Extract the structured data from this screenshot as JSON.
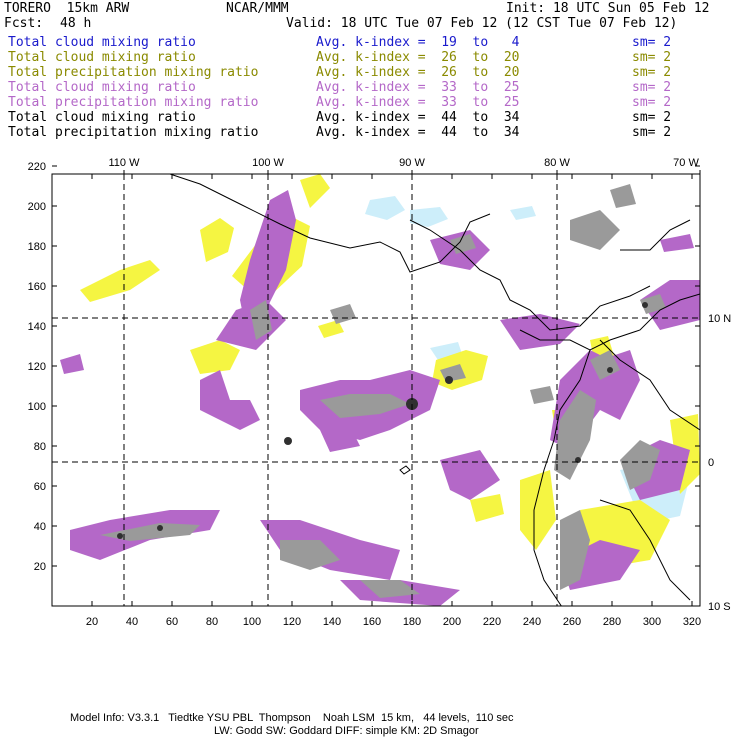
{
  "header": {
    "model": "TORERO  15km ARW",
    "org": "NCAR/MMM",
    "init": "Init: 18 UTC Sun 05 Feb 12",
    "fcst_label": "Fcst:",
    "fcst_value": "48 h",
    "valid": "Valid: 18 UTC Tue 07 Feb 12 (12 CST Tue 07 Feb 12)"
  },
  "legend": [
    {
      "label": "Total cloud mixing ratio",
      "kindex": "Avg. k-index =  19  to   4",
      "sm": "sm= 2",
      "color": "#1a1acc"
    },
    {
      "label": "Total cloud mixing ratio",
      "kindex": "Avg. k-index =  26  to  20",
      "sm": "sm= 2",
      "color": "#8a8a00"
    },
    {
      "label": "Total precipitation mixing ratio",
      "kindex": "Avg. k-index =  26  to  20",
      "sm": "sm= 2",
      "color": "#8a8a00"
    },
    {
      "label": "Total cloud mixing ratio",
      "kindex": "Avg. k-index =  33  to  25",
      "sm": "sm= 2",
      "color": "#b468c8"
    },
    {
      "label": "Total precipitation mixing ratio",
      "kindex": "Avg. k-index =  33  to  25",
      "sm": "sm= 2",
      "color": "#b468c8"
    },
    {
      "label": "Total cloud mixing ratio",
      "kindex": "Avg. k-index =  44  to  34",
      "sm": "sm= 2",
      "color": "#000000"
    },
    {
      "label": "Total precipitation mixing ratio",
      "kindex": "Avg. k-index =  44  to  34",
      "sm": "sm= 2",
      "color": "#000000"
    }
  ],
  "axes": {
    "lon_labels": [
      "110 W",
      "100 W",
      "90 W",
      "80 W",
      "70 W"
    ],
    "lat_labels": [
      "10 N",
      "0",
      "10 S"
    ],
    "x_ticks": [
      "20",
      "40",
      "60",
      "80",
      "100",
      "120",
      "140",
      "160",
      "180",
      "200",
      "220",
      "240",
      "260",
      "280",
      "300",
      "320"
    ],
    "y_ticks": [
      "20",
      "40",
      "60",
      "80",
      "100",
      "120",
      "140",
      "160",
      "180",
      "200",
      "220"
    ]
  },
  "footer": {
    "line1": "Model Info: V3.3.1   Tiedtke YSU PBL  Thompson    Noah LSM  15 km,   44 levels,  110 sec",
    "line2": "LW: Godd SW: Goddard DIFF: simple KM: 2D Smagor"
  },
  "colors": {
    "yellow": "#f5f542",
    "purple": "#b468c8",
    "gray": "#9a9a9a",
    "dark": "#404040",
    "lightblue": "#cdeefa"
  }
}
